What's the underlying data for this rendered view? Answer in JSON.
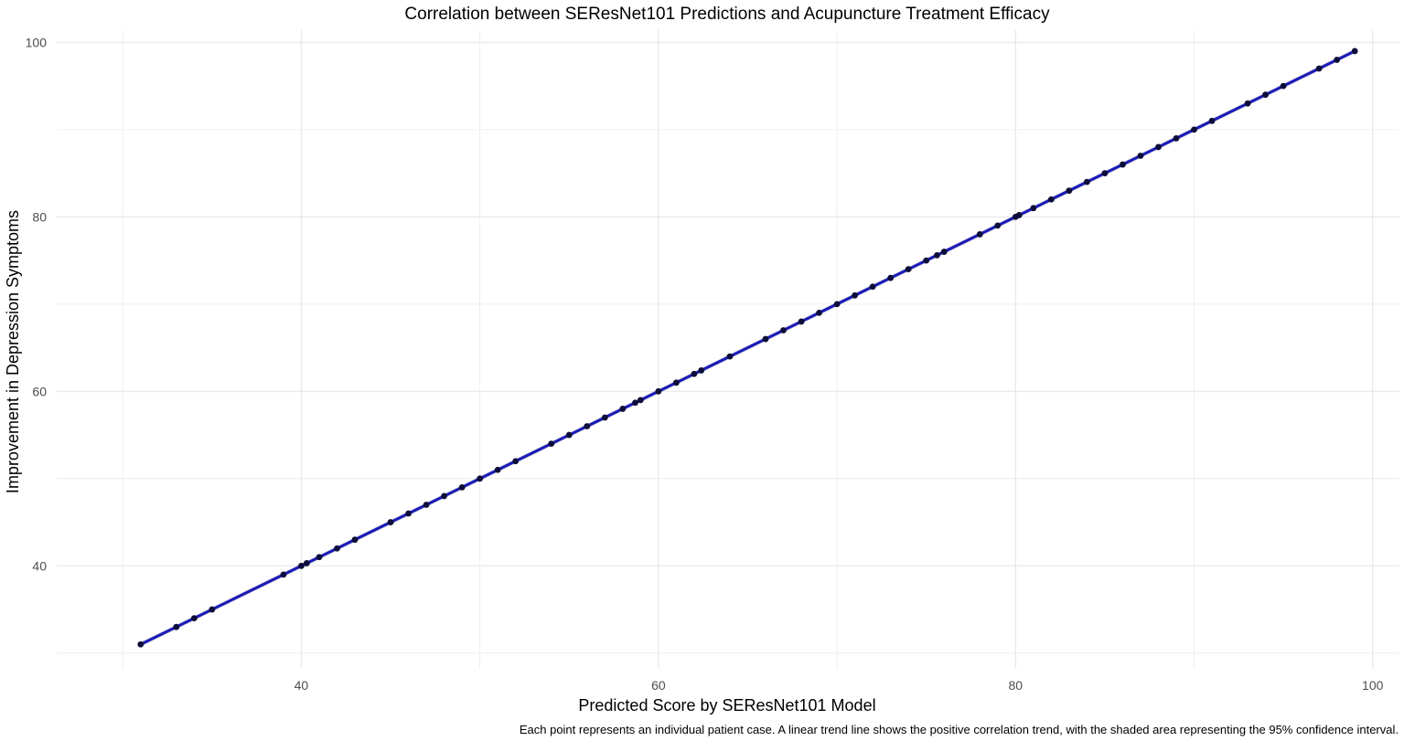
{
  "chart_data": {
    "type": "scatter",
    "title": "Correlation between SEResNet101 Predictions and Acupuncture Treatment Efficacy",
    "xlabel": "Predicted Score by SEResNet101 Model",
    "ylabel": "Improvement in Depression Symptoms",
    "caption": "Each point represents an individual patient case. A linear trend line shows the positive correlation trend, with the shaded area representing the 95% confidence interval.",
    "xlim": [
      26.3,
      101.5
    ],
    "ylim": [
      28.2,
      101.4
    ],
    "x_ticks": [
      40,
      60,
      80,
      100
    ],
    "y_ticks": [
      40,
      60,
      80,
      100
    ],
    "x_minor": [
      30,
      50,
      70,
      90
    ],
    "y_minor": [
      30,
      50,
      70,
      90
    ],
    "grid": true,
    "colors": {
      "points": "#0d0d3a",
      "trend_line": "#1a1ab8",
      "grid": "#ebebeb",
      "ci_band": "#9a9ab4"
    },
    "trend": {
      "x": [
        31,
        99
      ],
      "y": [
        31,
        99
      ]
    },
    "points": {
      "x": [
        31,
        33,
        34,
        35,
        39,
        40,
        40.3,
        41,
        42,
        43,
        45,
        46,
        47,
        48,
        49,
        50,
        51,
        52,
        54,
        55,
        56,
        57,
        58,
        58.7,
        59,
        60,
        61,
        62,
        62.4,
        64,
        66,
        67,
        68,
        69,
        70,
        71,
        72,
        73,
        74,
        75,
        75.6,
        76,
        78,
        79,
        80,
        80.2,
        81,
        82,
        83,
        84,
        85,
        86,
        87,
        88,
        89,
        90,
        91,
        93,
        94,
        95,
        97,
        98,
        99
      ],
      "y": [
        31,
        33,
        34,
        35,
        39,
        40,
        40.3,
        41,
        42,
        43,
        45,
        46,
        47,
        48,
        49,
        50,
        51,
        52,
        54,
        55,
        56,
        57,
        58,
        58.7,
        59,
        60,
        61,
        62,
        62.4,
        64,
        66,
        67,
        68,
        69,
        70,
        71,
        72,
        73,
        74,
        75,
        75.6,
        76,
        78,
        79,
        80,
        80.2,
        81,
        82,
        83,
        84,
        85,
        86,
        87,
        88,
        89,
        90,
        91,
        93,
        94,
        95,
        97,
        98,
        99
      ]
    }
  }
}
